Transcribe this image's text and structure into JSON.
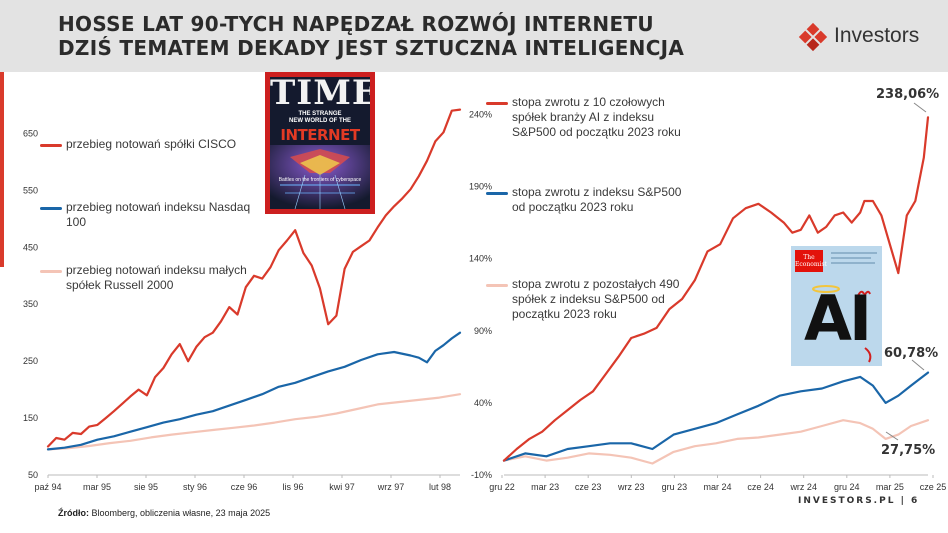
{
  "header": {
    "title_line1": "HOSSE LAT 90-TYCH NAPĘDZAŁ ROZWÓJ INTERNETU",
    "title_line2": "DZIŚ TEMATEM DEKADY JEST SZTUCZNA INTELIGENCJA",
    "logo_text": "Investors"
  },
  "colors": {
    "red": "#d93a2b",
    "blue": "#1a66a8",
    "pink": "#f4c4b6",
    "text": "#333333",
    "accent": "#d93a2b"
  },
  "time_cover": {
    "masthead": "TIME",
    "line1": "THE STRANGE",
    "line2": "NEW WORLD OF THE",
    "word": "INTERNET",
    "caption": "Battles on the frontiers of cyberspace"
  },
  "economist_cover": {
    "masthead_1": "The",
    "masthead_2": "Economist",
    "word": "AI"
  },
  "chart_data": [
    {
      "type": "line",
      "xlabels": [
        "paź 94",
        "mar 95",
        "sie 95",
        "sty 96",
        "cze 96",
        "lis 96",
        "kwi 97",
        "wrz 97",
        "lut 98"
      ],
      "yticks": [
        "50",
        "150",
        "250",
        "350",
        "450",
        "550",
        "650"
      ],
      "ylim": [
        50,
        700
      ],
      "legend_placement": "top-left",
      "series": [
        {
          "name": "przebieg notowań spółki CISCO",
          "color": "#d93a2b",
          "x": [
            0,
            0.02,
            0.04,
            0.06,
            0.08,
            0.1,
            0.12,
            0.14,
            0.16,
            0.18,
            0.2,
            0.22,
            0.24,
            0.26,
            0.28,
            0.3,
            0.32,
            0.34,
            0.36,
            0.38,
            0.4,
            0.42,
            0.44,
            0.46,
            0.48,
            0.5,
            0.52,
            0.54,
            0.56,
            0.58,
            0.6,
            0.62,
            0.64,
            0.66,
            0.68,
            0.7,
            0.72,
            0.74,
            0.76,
            0.78,
            0.8,
            0.82,
            0.84,
            0.86,
            0.88,
            0.9,
            0.92,
            0.94,
            0.96,
            0.98,
            1.0
          ],
          "values": [
            100,
            115,
            112,
            124,
            122,
            135,
            138,
            150,
            162,
            175,
            188,
            200,
            190,
            222,
            238,
            262,
            280,
            250,
            275,
            292,
            300,
            320,
            345,
            332,
            380,
            400,
            395,
            415,
            445,
            462,
            480,
            440,
            418,
            378,
            315,
            330,
            412,
            442,
            452,
            462,
            485,
            506,
            522,
            536,
            552,
            575,
            602,
            636,
            652,
            690,
            692
          ]
        },
        {
          "name": "przebieg notowań indeksu Nasdaq 100",
          "color": "#1a66a8",
          "x": [
            0,
            0.04,
            0.08,
            0.12,
            0.16,
            0.2,
            0.24,
            0.28,
            0.32,
            0.36,
            0.4,
            0.44,
            0.48,
            0.52,
            0.56,
            0.6,
            0.64,
            0.68,
            0.72,
            0.76,
            0.8,
            0.84,
            0.88,
            0.9,
            0.92,
            0.94,
            0.96,
            0.98,
            1.0
          ],
          "values": [
            95,
            98,
            103,
            112,
            118,
            126,
            134,
            142,
            148,
            156,
            162,
            172,
            182,
            192,
            205,
            212,
            222,
            232,
            240,
            252,
            262,
            266,
            260,
            256,
            248,
            268,
            278,
            290,
            300
          ]
        },
        {
          "name": "przebieg notowań indeksu małych spółek Russell 2000",
          "color": "#f4c4b6",
          "x": [
            0,
            0.05,
            0.1,
            0.15,
            0.2,
            0.25,
            0.3,
            0.35,
            0.4,
            0.45,
            0.5,
            0.55,
            0.6,
            0.65,
            0.7,
            0.75,
            0.8,
            0.85,
            0.9,
            0.95,
            1.0
          ],
          "values": [
            95,
            97,
            101,
            106,
            110,
            116,
            121,
            125,
            129,
            133,
            137,
            142,
            148,
            152,
            158,
            166,
            174,
            178,
            182,
            186,
            192
          ]
        }
      ]
    },
    {
      "type": "line",
      "xlabels": [
        "gru 22",
        "mar 23",
        "cze 23",
        "wrz 23",
        "gru 23",
        "mar 24",
        "cze 24",
        "wrz 24",
        "gru 24",
        "mar 25",
        "cze 25"
      ],
      "yticks": [
        "-10%",
        "40%",
        "90%",
        "140%",
        "190%",
        "240%"
      ],
      "ylim": [
        -10,
        250
      ],
      "legend_placement": "top-left",
      "annotations": [
        "238,06%",
        "60,78%",
        "27,75%"
      ],
      "series": [
        {
          "name": "stopa zwrotu z 10 czołowych spółek branży AI z indeksu S&P500 od początku 2023 roku",
          "color": "#d93a2b",
          "x": [
            0,
            0.03,
            0.06,
            0.09,
            0.12,
            0.15,
            0.18,
            0.21,
            0.24,
            0.27,
            0.3,
            0.33,
            0.36,
            0.39,
            0.42,
            0.45,
            0.48,
            0.51,
            0.54,
            0.57,
            0.6,
            0.63,
            0.66,
            0.68,
            0.7,
            0.72,
            0.74,
            0.76,
            0.78,
            0.8,
            0.82,
            0.84,
            0.85,
            0.87,
            0.89,
            0.91,
            0.93,
            0.95,
            0.97,
            0.99,
            1.0
          ],
          "values": [
            0,
            8,
            15,
            20,
            28,
            35,
            42,
            48,
            60,
            72,
            85,
            88,
            92,
            105,
            112,
            125,
            145,
            150,
            168,
            175,
            178,
            172,
            165,
            158,
            160,
            170,
            158,
            162,
            170,
            172,
            165,
            172,
            180,
            180,
            170,
            150,
            130,
            170,
            180,
            210,
            238
          ]
        },
        {
          "name": "stopa zwrotu z indeksu S&P500 od początku 2023 roku",
          "color": "#1a66a8",
          "x": [
            0,
            0.05,
            0.1,
            0.15,
            0.2,
            0.25,
            0.3,
            0.35,
            0.4,
            0.45,
            0.5,
            0.55,
            0.6,
            0.65,
            0.7,
            0.75,
            0.8,
            0.84,
            0.87,
            0.9,
            0.93,
            0.96,
            1.0
          ],
          "values": [
            0,
            5,
            3,
            8,
            10,
            12,
            12,
            8,
            18,
            22,
            26,
            32,
            38,
            45,
            48,
            50,
            55,
            58,
            52,
            40,
            45,
            52,
            61
          ]
        },
        {
          "name": "stopa zwrotu z pozostałych 490 spółek z indeksu S&P500 od początku 2023 roku",
          "color": "#f4c4b6",
          "x": [
            0,
            0.05,
            0.1,
            0.15,
            0.2,
            0.25,
            0.3,
            0.35,
            0.4,
            0.45,
            0.5,
            0.55,
            0.6,
            0.65,
            0.7,
            0.75,
            0.8,
            0.84,
            0.87,
            0.9,
            0.93,
            0.96,
            1.0
          ],
          "values": [
            0,
            3,
            0,
            2,
            5,
            4,
            2,
            -2,
            6,
            10,
            12,
            15,
            16,
            18,
            20,
            24,
            28,
            26,
            22,
            15,
            18,
            24,
            28
          ]
        }
      ]
    }
  ],
  "source": {
    "label": "Źródło:",
    "text": "Bloomberg, obliczenia własne, 23 maja 2025"
  },
  "footer": {
    "site": "INVESTORS.PL",
    "sep": "|",
    "page": "6"
  }
}
